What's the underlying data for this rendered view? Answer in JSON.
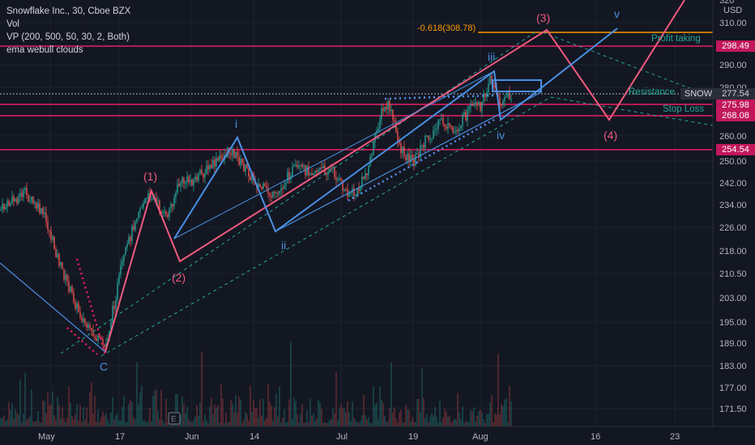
{
  "legend": {
    "title": "Snowflake Inc., 30, Cboe BZX",
    "vol": "Vol",
    "vp": "VP (200, 500, 50, 30, 2, Both)",
    "ema": "ema webull clouds"
  },
  "price_axis": {
    "currency": "USD",
    "ticks": [
      "310.00",
      "290.00",
      "280.00",
      "270.00",
      "260.00",
      "250.00",
      "242.00",
      "234.00",
      "226.00",
      "218.00",
      "210.50",
      "203.00",
      "195.00",
      "189.00",
      "183.00",
      "177.00",
      "171.50"
    ]
  },
  "time_axis": {
    "ticks": [
      "May",
      "17",
      "Jun",
      "14",
      "Jul",
      "19",
      "Aug",
      "16",
      "23"
    ]
  },
  "price_tags": {
    "t1": "298.49",
    "snow_label": "SNOW",
    "t2": "277.54",
    "t3": "275.98",
    "t4": "268.08",
    "t5": "254.54",
    "top_tag": "320"
  },
  "annotations": {
    "wave1": "(1)",
    "wave2": "(2)",
    "wave3": "(3)",
    "wave4": "(4)",
    "wave_i": "i",
    "wave_ii": "ii",
    "wave_iii": "iii",
    "wave_iv": "iv",
    "wave_v": "v",
    "wave_c": "C",
    "fib": "-0.618(308.78)",
    "profit_taking": "Profit taking",
    "resistance": "Resistance",
    "stop_loss": "Stop Loss"
  },
  "colors": {
    "background": "#131722",
    "pink": "#e91e63",
    "wave_pink": "#f05a7e",
    "wave_blue": "#4a90e2",
    "teal": "#26a69a",
    "orange": "#ff9800"
  }
}
